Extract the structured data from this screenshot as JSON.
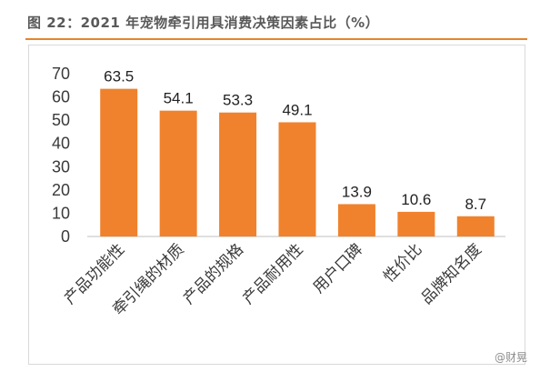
{
  "title": "图 22：2021 年宠物牵引用具消费决策因素占比（%）",
  "watermark": "@财晃",
  "colors": {
    "bar": "#f0822d",
    "rule": "#e5852a",
    "axis": "#bfbfbf"
  },
  "chart_data": {
    "type": "bar",
    "categories": [
      "产品功能性",
      "牵引绳的材质",
      "产品的规格",
      "产品耐用性",
      "用户口碑",
      "性价比",
      "品牌知名度"
    ],
    "values": [
      63.5,
      54.1,
      53.3,
      49.1,
      13.9,
      10.6,
      8.7
    ],
    "yticks": [
      0,
      10,
      20,
      30,
      40,
      50,
      60,
      70
    ],
    "ylim": [
      0,
      70
    ],
    "grid": false,
    "legend": "none"
  }
}
